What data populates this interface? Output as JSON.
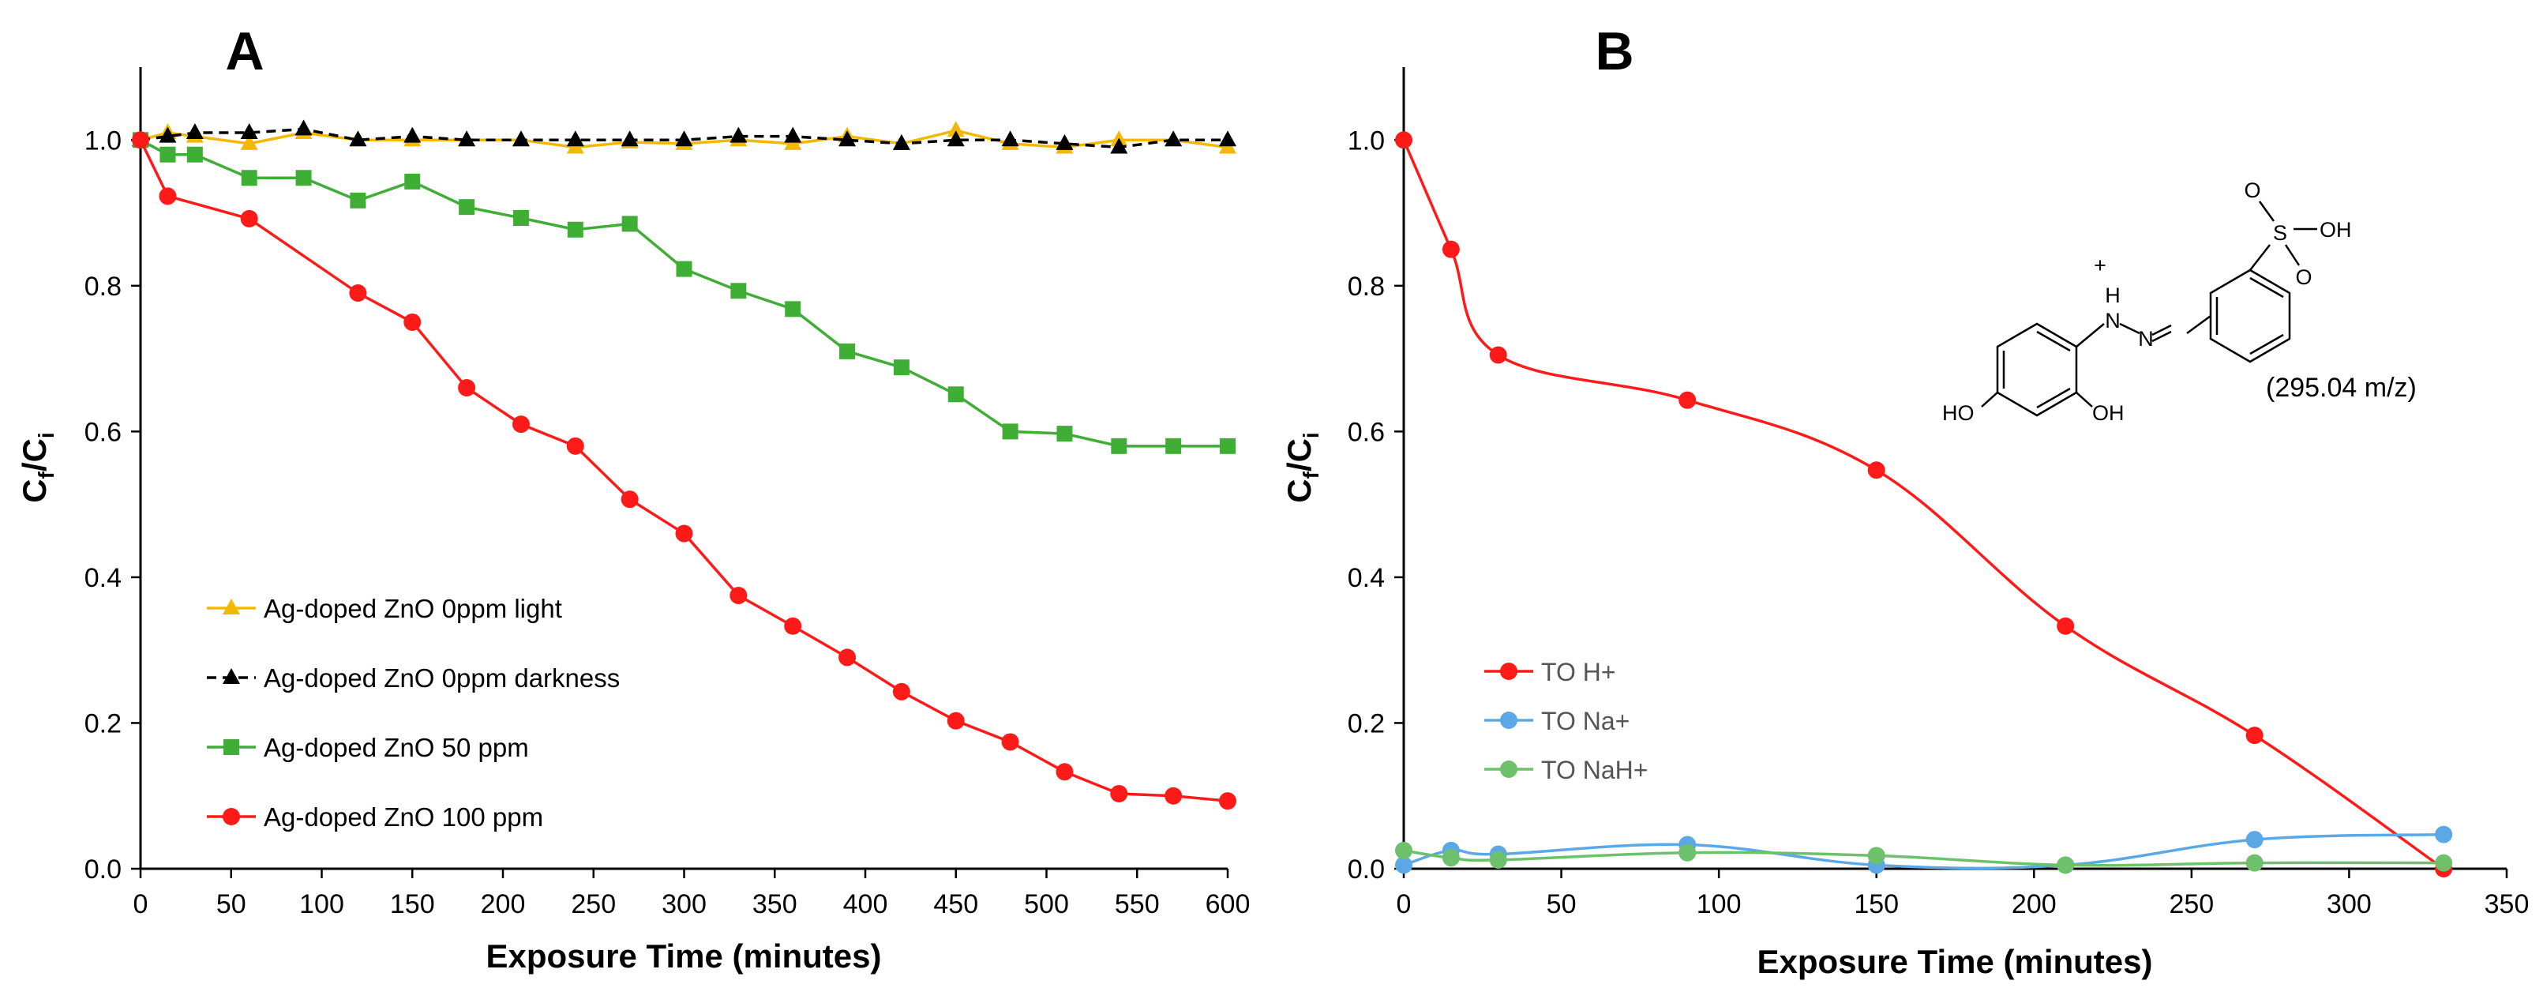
{
  "chart_data": [
    {
      "panel_label": "A",
      "type": "line",
      "xlabel": "Exposure Time (minutes)",
      "ylabel_main": "C",
      "ylabel_sub1": "f",
      "ylabel_sep": "/C",
      "ylabel_sub2": "i",
      "xlim": [
        0,
        600
      ],
      "ylim": [
        0,
        1.1
      ],
      "xticks": [
        0,
        50,
        100,
        150,
        200,
        250,
        300,
        350,
        400,
        450,
        500,
        550,
        600
      ],
      "yticks": [
        0.0,
        0.2,
        0.4,
        0.6,
        0.8,
        1.0
      ],
      "grid": false,
      "legend_position": "lower-left",
      "series": [
        {
          "name": "Ag-doped ZnO 0ppm light",
          "color": "#f5b800",
          "marker": "triangle",
          "dash": false,
          "x": [
            0,
            15,
            30,
            60,
            90,
            120,
            150,
            180,
            210,
            240,
            270,
            300,
            330,
            360,
            390,
            420,
            450,
            480,
            510,
            540,
            570,
            600
          ],
          "y": [
            1.0,
            1.01,
            1.005,
            0.995,
            1.01,
            1.0,
            1.0,
            1.0,
            1.0,
            0.99,
            0.997,
            0.995,
            1.0,
            0.995,
            1.005,
            0.995,
            1.013,
            0.995,
            0.99,
            1.0,
            1.0,
            0.99
          ]
        },
        {
          "name": "Ag-doped ZnO 0ppm darkness",
          "color": "#000000",
          "marker": "triangle",
          "dash": true,
          "x": [
            0,
            15,
            30,
            60,
            90,
            120,
            150,
            180,
            210,
            240,
            270,
            300,
            330,
            360,
            390,
            420,
            450,
            480,
            510,
            540,
            570,
            600
          ],
          "y": [
            1.0,
            1.005,
            1.01,
            1.01,
            1.015,
            1.0,
            1.005,
            1.0,
            1.0,
            1.0,
            1.0,
            1.0,
            1.005,
            1.005,
            1.0,
            0.995,
            1.0,
            1.0,
            0.995,
            0.99,
            1.0,
            1.0
          ]
        },
        {
          "name": "Ag-doped ZnO 50 ppm",
          "color": "#3fae35",
          "marker": "square",
          "dash": false,
          "x": [
            0,
            15,
            30,
            60,
            90,
            120,
            150,
            180,
            210,
            240,
            270,
            300,
            330,
            360,
            390,
            420,
            450,
            480,
            510,
            540,
            570,
            600
          ],
          "y": [
            1.0,
            0.98,
            0.98,
            0.948,
            0.948,
            0.917,
            0.943,
            0.908,
            0.893,
            0.877,
            0.885,
            0.823,
            0.793,
            0.768,
            0.71,
            0.688,
            0.651,
            0.6,
            0.597,
            0.58,
            0.58,
            0.58
          ]
        },
        {
          "name": "Ag-doped ZnO 100 ppm",
          "color": "#ff1a1a",
          "marker": "circle",
          "dash": false,
          "x": [
            0,
            15,
            60,
            120,
            150,
            180,
            210,
            240,
            270,
            300,
            330,
            360,
            390,
            420,
            450,
            480,
            510,
            540,
            570,
            600
          ],
          "y": [
            1.0,
            0.923,
            0.892,
            0.79,
            0.75,
            0.66,
            0.61,
            0.58,
            0.507,
            0.46,
            0.375,
            0.333,
            0.29,
            0.243,
            0.203,
            0.174,
            0.133,
            0.103,
            0.1,
            0.093
          ]
        }
      ]
    },
    {
      "panel_label": "B",
      "type": "line",
      "xlabel": "Exposure Time (minutes)",
      "ylabel_main": "C",
      "ylabel_sub1": "f",
      "ylabel_sep": "/C",
      "ylabel_sub2": "i",
      "xlim": [
        0,
        350
      ],
      "ylim": [
        0,
        1.1
      ],
      "xticks": [
        0,
        50,
        100,
        150,
        200,
        250,
        300,
        350
      ],
      "yticks": [
        0.0,
        0.2,
        0.4,
        0.6,
        0.8,
        1.0
      ],
      "grid": false,
      "legend_position": "lower-left",
      "annotation": "(295.04 m/z)",
      "structure_labels": {
        "plus": "+",
        "nh": "H",
        "n1": "N",
        "n2": "N",
        "s": "S",
        "o_top": "O",
        "o_bottom": "O",
        "oh": "OH",
        "ho_left": "HO",
        "oh_ring": "OH"
      },
      "series": [
        {
          "name": "TO H+",
          "color": "#ff1a1a",
          "marker": "circle",
          "x": [
            0,
            15,
            30,
            90,
            150,
            210,
            270,
            330
          ],
          "y": [
            1.0,
            0.85,
            0.705,
            0.643,
            0.547,
            0.333,
            0.183,
            0.0
          ]
        },
        {
          "name": "TO Na+",
          "color": "#5aa9e6",
          "marker": "circle",
          "x": [
            0,
            15,
            30,
            90,
            150,
            210,
            270,
            330
          ],
          "y": [
            0.005,
            0.025,
            0.02,
            0.033,
            0.005,
            0.005,
            0.04,
            0.047
          ]
        },
        {
          "name": "TO NaH+",
          "color": "#6cc16a",
          "marker": "circle",
          "x": [
            0,
            15,
            30,
            90,
            150,
            210,
            270,
            330
          ],
          "y": [
            0.025,
            0.015,
            0.012,
            0.022,
            0.018,
            0.005,
            0.008,
            0.008
          ]
        }
      ]
    }
  ]
}
